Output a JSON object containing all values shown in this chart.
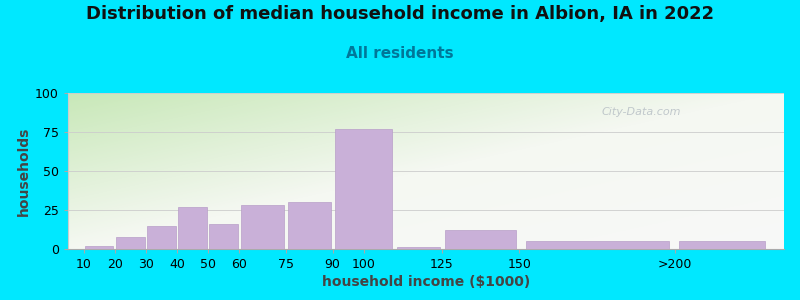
{
  "title": "Distribution of median household income in Albion, IA in 2022",
  "subtitle": "All residents",
  "xlabel": "household income ($1000)",
  "ylabel": "households",
  "bar_color": "#c9b0d8",
  "bar_edge_color": "#b89ec8",
  "ylim": [
    0,
    100
  ],
  "yticks": [
    0,
    25,
    50,
    75,
    100
  ],
  "bg_color": "#00e8ff",
  "plot_bg_top_left": "#d8eecc",
  "plot_bg_top_right": "#e8f0e0",
  "plot_bg_bottom": "#f5f5f5",
  "title_color": "#111111",
  "subtitle_color": "#007799",
  "axis_label_color": "#444444",
  "watermark": "City-Data.com",
  "title_fontsize": 13,
  "subtitle_fontsize": 11,
  "tick_fontsize": 9,
  "label_fontsize": 10,
  "bins_left": [
    10,
    20,
    30,
    40,
    50,
    60,
    75,
    90,
    110,
    125,
    150,
    200
  ],
  "bins_right": [
    20,
    30,
    40,
    50,
    60,
    75,
    90,
    110,
    125,
    150,
    200,
    230
  ],
  "values": [
    2,
    8,
    15,
    27,
    16,
    28,
    30,
    77,
    1,
    12,
    5,
    5
  ],
  "xtick_positions": [
    10,
    20,
    30,
    40,
    50,
    60,
    75,
    90,
    100,
    125,
    150,
    200
  ],
  "xtick_labels": [
    "10",
    "20",
    "30",
    "40",
    "50",
    "60",
    "75",
    "90",
    "100",
    "125",
    "150",
    ">200"
  ],
  "xlim": [
    5,
    235
  ]
}
